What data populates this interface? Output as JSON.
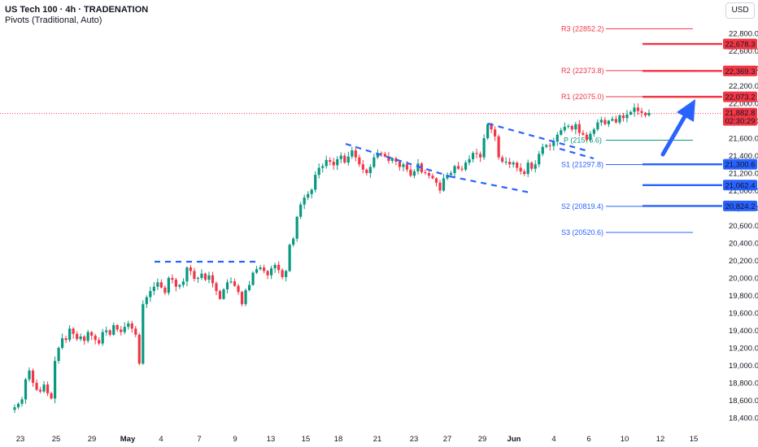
{
  "header": {
    "title": "US Tech 100 · 4h · TRADENATION",
    "subtitle": "Pivots (Traditional, Auto)"
  },
  "currency_button": "USD",
  "colors": {
    "up": "#089981",
    "down": "#f23645",
    "wick_up": "#089981",
    "wick_down": "#f23645",
    "annotation": "#2962ff",
    "resistance": "#f23645",
    "support": "#2962ff",
    "pivot": "#089981",
    "price": "#f23645"
  },
  "chart_data": {
    "type": "candlestick",
    "title": "US Tech 100 · 4h · TRADENATION",
    "ylim": [
      18300,
      22950
    ],
    "y_ticks": [
      18400,
      18600,
      18800,
      19000,
      19200,
      19400,
      19600,
      19800,
      20000,
      20200,
      20400,
      20600,
      20800,
      21000,
      21200,
      21400,
      21600,
      21800,
      22000,
      22200,
      22400,
      22600,
      22800
    ],
    "y_tick_labels": [
      "18,400.0",
      "18,600.0",
      "18,800.0",
      "19,000.0",
      "19,200.0",
      "19,400.0",
      "19,600.0",
      "19,800.0",
      "20,000.0",
      "20,200.0",
      "20,400.0",
      "20,600.0",
      "20,800.0",
      "21,000.0",
      "21,200.0",
      "21,400.0",
      "21,600.0",
      "21,800.0",
      "22,000.0",
      "22,200.0",
      "22,400.0",
      "22,600.0",
      "22,800.0"
    ],
    "x_tick_labels": [
      "23",
      "25",
      "29",
      "May",
      "4",
      "7",
      "9",
      "13",
      "15",
      "18",
      "21",
      "23",
      "27",
      "29",
      "Jun",
      "4",
      "6",
      "10",
      "12",
      "15"
    ],
    "x_tick_bold": [
      false,
      false,
      false,
      true,
      false,
      false,
      false,
      false,
      false,
      false,
      false,
      false,
      false,
      false,
      true,
      false,
      false,
      false,
      false,
      false
    ],
    "closes": [
      18520,
      18560,
      18610,
      18840,
      18940,
      18800,
      18720,
      18700,
      18780,
      18680,
      18620,
      19050,
      19200,
      19310,
      19290,
      19420,
      19360,
      19300,
      19330,
      19280,
      19380,
      19340,
      19290,
      19250,
      19380,
      19400,
      19350,
      19460,
      19410,
      19380,
      19440,
      19480,
      19420,
      19350,
      19020,
      19700,
      19780,
      19850,
      19900,
      19950,
      19890,
      19830,
      20000,
      19980,
      19900,
      19920,
      19960,
      20120,
      20080,
      19990,
      20000,
      20050,
      19980,
      20030,
      19940,
      19850,
      19760,
      19870,
      19950,
      19960,
      19910,
      19840,
      19700,
      19860,
      19920,
      20060,
      20100,
      20120,
      20080,
      20030,
      20110,
      20150,
      20090,
      20010,
      20080,
      20380,
      20450,
      20700,
      20840,
      20920,
      20960,
      21010,
      21180,
      21260,
      21280,
      21350,
      21330,
      21290,
      21360,
      21400,
      21320,
      21390,
      21460,
      21380,
      21300,
      21240,
      21200,
      21270,
      21380,
      21430,
      21420,
      21390,
      21340,
      21370,
      21330,
      21270,
      21300,
      21240,
      21170,
      21220,
      21310,
      21210,
      21200,
      21170,
      21140,
      21090,
      21000,
      21140,
      21180,
      21200,
      21280,
      21250,
      21240,
      21320,
      21360,
      21430,
      21420,
      21380,
      21600,
      21760,
      21700,
      21620,
      21380,
      21330,
      21330,
      21300,
      21320,
      21260,
      21220,
      21190,
      21320,
      21250,
      21300,
      21420,
      21500,
      21520,
      21510,
      21560,
      21640,
      21690,
      21730,
      21740,
      21700,
      21760,
      21660,
      21640,
      21580,
      21650,
      21700,
      21780,
      21810,
      21760,
      21800,
      21820,
      21780,
      21860,
      21830,
      21870,
      21900,
      21950,
      21910,
      21890,
      21860,
      21890
    ],
    "current_price": 21882.8,
    "current_price_label": "21,882.8",
    "countdown": "02:30:29",
    "pivots": [
      {
        "name": "R3",
        "label": "R3 (22852.2)",
        "value": 22852.2,
        "kind": "resistance"
      },
      {
        "name": "R2",
        "label": "R2 (22373.8)",
        "value": 22373.8,
        "kind": "resistance"
      },
      {
        "name": "R1",
        "label": "R1 (22075.0)",
        "value": 22075.0,
        "kind": "resistance"
      },
      {
        "name": "P",
        "label": "P (21576.6)",
        "value": 21576.6,
        "kind": "pivot"
      },
      {
        "name": "S1",
        "label": "S1 (21297.8)",
        "value": 21297.8,
        "kind": "support"
      },
      {
        "name": "S2",
        "label": "S2 (20819.4)",
        "value": 20819.4,
        "kind": "support"
      },
      {
        "name": "S3",
        "label": "S3 (20520.6)",
        "value": 20520.6,
        "kind": "support"
      }
    ],
    "price_levels": [
      {
        "value": 22678.3,
        "label": "22,678.3",
        "kind": "resistance"
      },
      {
        "value": 22369.3,
        "label": "22,369.3",
        "kind": "resistance"
      },
      {
        "value": 22073.2,
        "label": "22,073.2",
        "kind": "resistance"
      },
      {
        "value": 21300.6,
        "label": "21,300.6",
        "kind": "support"
      },
      {
        "value": 21062.4,
        "label": "21,062.4",
        "kind": "support"
      },
      {
        "value": 20824.2,
        "label": "20,824.2",
        "kind": "support"
      }
    ]
  }
}
